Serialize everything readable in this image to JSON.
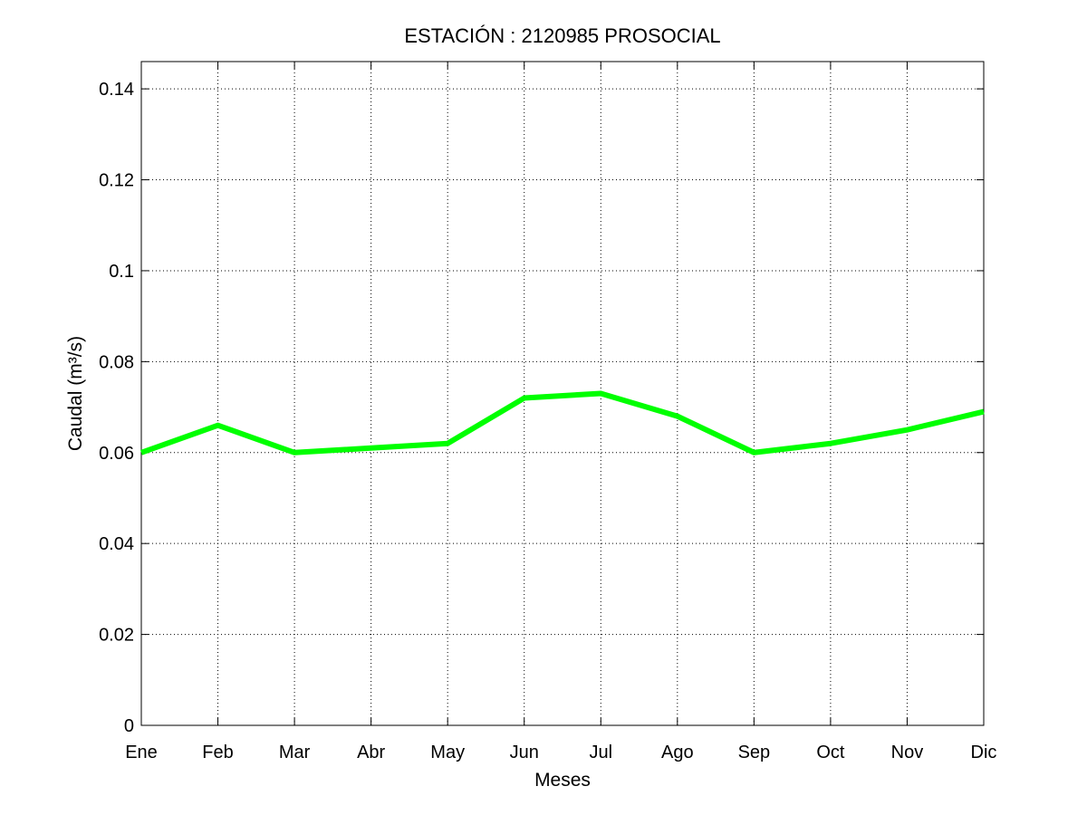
{
  "chart_data": {
    "type": "line",
    "title": "ESTACIÓN :  2120985  PROSOCIAL",
    "xlabel": "Meses",
    "ylabel": "Caudal (m³/s)",
    "categories": [
      "Ene",
      "Feb",
      "Mar",
      "Abr",
      "May",
      "Jun",
      "Jul",
      "Ago",
      "Sep",
      "Oct",
      "Nov",
      "Dic"
    ],
    "series": [
      {
        "values": [
          0.06,
          0.066,
          0.06,
          0.061,
          0.062,
          0.072,
          0.073,
          0.068,
          0.06,
          0.062,
          0.065,
          0.069
        ],
        "color": "#00ff00"
      }
    ],
    "ylim": [
      0,
      0.146
    ],
    "yticks": [
      0,
      0.02,
      0.04,
      0.06,
      0.08,
      0.1,
      0.12,
      0.14
    ],
    "ytick_labels": [
      "0",
      "0.02",
      "0.04",
      "0.06",
      "0.08",
      "0.1",
      "0.12",
      "0.14"
    ],
    "grid": true,
    "legend": "none"
  }
}
